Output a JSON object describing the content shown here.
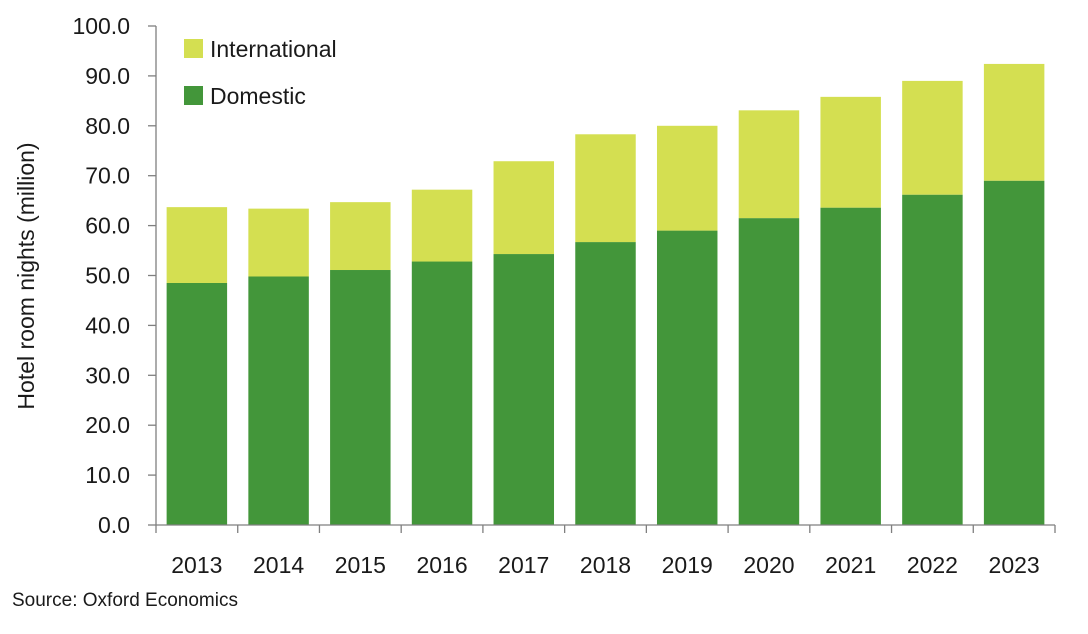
{
  "chart_data": {
    "type": "bar",
    "stacked": true,
    "categories": [
      "2013",
      "2014",
      "2015",
      "2016",
      "2017",
      "2018",
      "2019",
      "2020",
      "2021",
      "2022",
      "2023"
    ],
    "series": [
      {
        "name": "Domestic",
        "color": "#43963a",
        "values": [
          48.5,
          49.8,
          51.1,
          52.8,
          54.3,
          56.7,
          59.0,
          61.5,
          63.6,
          66.2,
          69.0
        ]
      },
      {
        "name": "International",
        "color": "#d4df51",
        "values": [
          15.2,
          13.6,
          13.6,
          14.4,
          18.6,
          21.6,
          21.0,
          21.6,
          22.2,
          22.8,
          23.4
        ]
      }
    ],
    "legend_order": [
      "International",
      "Domestic"
    ],
    "legend_position": "top-left",
    "ylabel": "Hotel room nights (million)",
    "xlabel": "",
    "ylim": [
      0,
      100
    ],
    "ytick_step": 10,
    "ytick_labels": [
      "0.0",
      "10.0",
      "20.0",
      "30.0",
      "40.0",
      "50.0",
      "60.0",
      "70.0",
      "80.0",
      "90.0",
      "100.0"
    ],
    "grid": false
  },
  "source_note": "Source: Oxford Economics"
}
